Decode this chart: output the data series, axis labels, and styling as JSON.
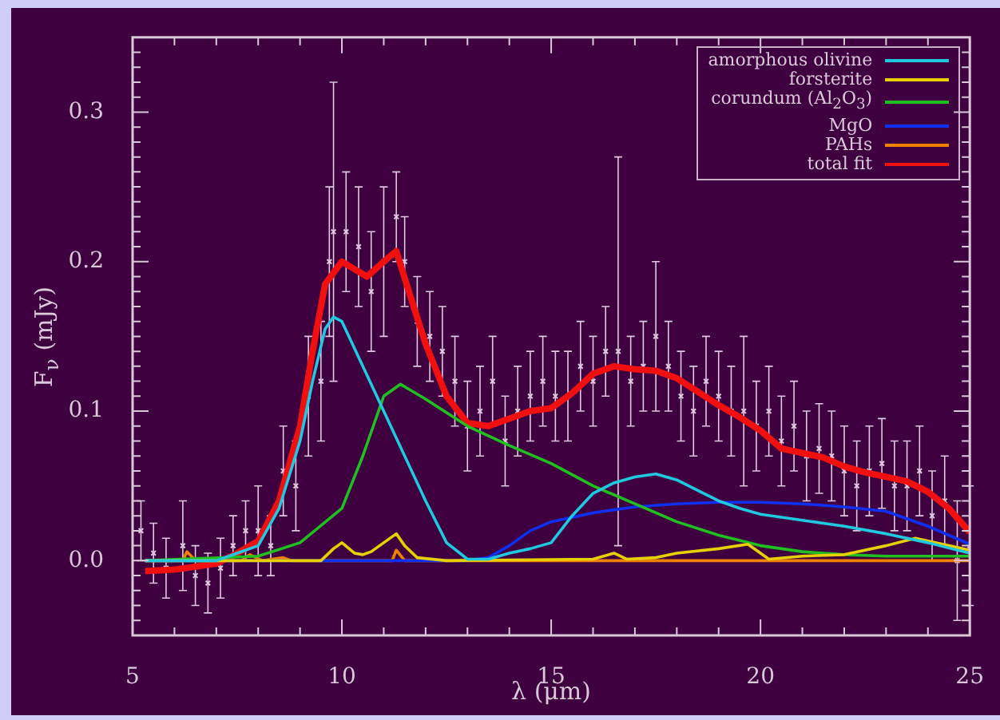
{
  "chart_data": {
    "type": "line",
    "xlabel": "λ (μm)",
    "ylabel": "F$_{ν}$ (mJy)",
    "xlim": [
      5,
      25
    ],
    "ylim": [
      -0.05,
      0.35
    ],
    "xticks": [
      5,
      {
        "value": 6,
        "label": null
      },
      {
        "value": 7,
        "label": null
      },
      {
        "value": 8,
        "label": null
      },
      {
        "value": 9,
        "label": null
      },
      10,
      {
        "value": 11,
        "label": null
      },
      {
        "value": 12,
        "label": null
      },
      {
        "value": 13,
        "label": null
      },
      {
        "value": 14,
        "label": null
      },
      15,
      {
        "value": 16,
        "label": null
      },
      {
        "value": 17,
        "label": null
      },
      {
        "value": 18,
        "label": null
      },
      {
        "value": 19,
        "label": null
      },
      20,
      {
        "value": 21,
        "label": null
      },
      {
        "value": 22,
        "label": null
      },
      {
        "value": 23,
        "label": null
      },
      {
        "value": 24,
        "label": null
      },
      25
    ],
    "yticks": [
      {
        "value": -0.04,
        "label": null
      },
      {
        "value": -0.03,
        "label": null
      },
      {
        "value": -0.02,
        "label": null
      },
      {
        "value": -0.01,
        "label": null
      },
      {
        "value": 0,
        "label": "0.0"
      },
      {
        "value": 0.01,
        "label": null
      },
      {
        "value": 0.02,
        "label": null
      },
      {
        "value": 0.03,
        "label": null
      },
      {
        "value": 0.04,
        "label": null
      },
      {
        "value": 0.05,
        "label": null
      },
      {
        "value": 0.06,
        "label": null
      },
      {
        "value": 0.07,
        "label": null
      },
      {
        "value": 0.08,
        "label": null
      },
      {
        "value": 0.09,
        "label": null
      },
      0.1,
      {
        "value": 0.11,
        "label": null
      },
      {
        "value": 0.12,
        "label": null
      },
      {
        "value": 0.13,
        "label": null
      },
      {
        "value": 0.14,
        "label": null
      },
      {
        "value": 0.15,
        "label": null
      },
      {
        "value": 0.16,
        "label": null
      },
      {
        "value": 0.17,
        "label": null
      },
      {
        "value": 0.18,
        "label": null
      },
      {
        "value": 0.19,
        "label": null
      },
      0.2,
      {
        "value": 0.21,
        "label": null
      },
      {
        "value": 0.22,
        "label": null
      },
      {
        "value": 0.23,
        "label": null
      },
      {
        "value": 0.24,
        "label": null
      },
      {
        "value": 0.25,
        "label": null
      },
      {
        "value": 0.26,
        "label": null
      },
      {
        "value": 0.27,
        "label": null
      },
      {
        "value": 0.28,
        "label": null
      },
      {
        "value": 0.29,
        "label": null
      },
      0.3,
      {
        "value": 0.31,
        "label": null
      },
      {
        "value": 0.32,
        "label": null
      },
      {
        "value": 0.33,
        "label": null
      },
      {
        "value": 0.34,
        "label": null
      }
    ],
    "legend": "top right",
    "grid": false,
    "series": [
      {
        "type": "scatter",
        "marker": "cross",
        "color": "#e0c8e0",
        "x": [
          5.2,
          5.5,
          5.8,
          6.2,
          6.5,
          6.8,
          7.1,
          7.4,
          7.7,
          8.0,
          8.3,
          8.6,
          8.9,
          9.2,
          9.5,
          9.7,
          9.8,
          10.1,
          10.4,
          10.7,
          11.0,
          11.3,
          11.5,
          11.8,
          12.1,
          12.4,
          12.7,
          13.0,
          13.3,
          13.6,
          13.9,
          14.2,
          14.5,
          14.8,
          15.1,
          15.4,
          15.7,
          16.0,
          16.3,
          16.6,
          16.9,
          17.2,
          17.5,
          17.8,
          18.1,
          18.4,
          18.7,
          19.0,
          19.3,
          19.6,
          19.9,
          20.2,
          20.5,
          20.8,
          21.1,
          21.4,
          21.7,
          22.0,
          22.3,
          22.6,
          22.9,
          23.2,
          23.5,
          23.8,
          24.1,
          24.4,
          24.7,
          25.0
        ],
        "values": [
          0.02,
          0.005,
          -0.005,
          0.01,
          -0.01,
          -0.015,
          -0.005,
          0.01,
          0.02,
          0.02,
          0.01,
          0.06,
          0.05,
          0.11,
          0.12,
          0.2,
          0.22,
          0.22,
          0.21,
          0.18,
          0.2,
          0.23,
          0.2,
          0.16,
          0.15,
          0.14,
          0.12,
          0.09,
          0.1,
          0.12,
          0.08,
          0.1,
          0.11,
          0.12,
          0.11,
          0.11,
          0.13,
          0.12,
          0.14,
          0.14,
          0.12,
          0.13,
          0.15,
          0.13,
          0.11,
          0.1,
          0.12,
          0.11,
          0.1,
          0.1,
          0.09,
          0.1,
          0.08,
          0.09,
          0.07,
          0.075,
          0.07,
          0.06,
          0.05,
          0.06,
          0.065,
          0.05,
          0.05,
          0.06,
          0.03,
          0.04,
          0.0,
          0.01
        ],
        "errors": [
          0.02,
          0.02,
          0.02,
          0.03,
          0.02,
          0.02,
          0.02,
          0.02,
          0.02,
          0.03,
          0.02,
          0.03,
          0.03,
          0.04,
          0.04,
          0.05,
          0.1,
          0.04,
          0.04,
          0.04,
          0.05,
          0.03,
          0.03,
          0.03,
          0.03,
          0.03,
          0.03,
          0.03,
          0.03,
          0.03,
          0.03,
          0.03,
          0.03,
          0.03,
          0.03,
          0.03,
          0.03,
          0.03,
          0.03,
          0.13,
          0.03,
          0.03,
          0.05,
          0.03,
          0.03,
          0.03,
          0.03,
          0.03,
          0.03,
          0.05,
          0.03,
          0.03,
          0.03,
          0.03,
          0.03,
          0.03,
          0.03,
          0.03,
          0.03,
          0.03,
          0.03,
          0.03,
          0.03,
          0.03,
          0.03,
          0.03,
          0.04,
          0.04
        ]
      },
      {
        "name": "amorphous olivine",
        "color": "#20c8e0",
        "x": [
          5.3,
          7,
          7.5,
          8,
          8.5,
          9,
          9.3,
          9.6,
          9.8,
          10,
          10.5,
          11,
          11.5,
          12,
          12.5,
          13,
          13.5,
          14,
          14.5,
          15,
          15.5,
          16,
          16.5,
          17,
          17.5,
          18,
          18.5,
          19,
          19.5,
          20,
          21,
          22,
          23,
          24,
          25
        ],
        "values": [
          0,
          0,
          0.005,
          0.01,
          0.035,
          0.08,
          0.12,
          0.155,
          0.163,
          0.16,
          0.13,
          0.1,
          0.07,
          0.04,
          0.012,
          0.001,
          0.001,
          0.005,
          0.008,
          0.012,
          0.03,
          0.045,
          0.052,
          0.056,
          0.058,
          0.054,
          0.047,
          0.04,
          0.035,
          0.031,
          0.027,
          0.023,
          0.018,
          0.012,
          0.005
        ]
      },
      {
        "name": "forsterite",
        "color": "#e8d000",
        "x": [
          5.3,
          9.5,
          9.8,
          10,
          10.3,
          10.5,
          10.7,
          11,
          11.3,
          11.5,
          11.8,
          12.5,
          16,
          16.5,
          16.8,
          17.5,
          18,
          19,
          19.7,
          20.2,
          21,
          22,
          23,
          23.7,
          24.5,
          25
        ],
        "values": [
          0,
          0,
          0.008,
          0.012,
          0.005,
          0.004,
          0.006,
          0.012,
          0.018,
          0.01,
          0.002,
          0,
          0.001,
          0.005,
          0.001,
          0.002,
          0.005,
          0.008,
          0.011,
          0.001,
          0.003,
          0.004,
          0.01,
          0.015,
          0.01,
          0.007
        ]
      },
      {
        "name": "corundum (Al$_{2}$O$_{3}$)",
        "color": "#20c020",
        "x": [
          5.3,
          8,
          9,
          10,
          10.5,
          11,
          11.4,
          12,
          13,
          14,
          15,
          16,
          17,
          18,
          19,
          20,
          21,
          22,
          23,
          25
        ],
        "values": [
          0,
          0.003,
          0.012,
          0.035,
          0.07,
          0.11,
          0.118,
          0.108,
          0.09,
          0.077,
          0.065,
          0.05,
          0.038,
          0.026,
          0.017,
          0.01,
          0.006,
          0.004,
          0.003,
          0.003
        ]
      },
      {
        "name": "MgO",
        "color": "#1030f0",
        "x": [
          5.3,
          13,
          13.5,
          14,
          14.5,
          15,
          16,
          17,
          18,
          19,
          20,
          21,
          22,
          23,
          24,
          25
        ],
        "values": [
          0,
          0,
          0.002,
          0.01,
          0.02,
          0.026,
          0.032,
          0.036,
          0.038,
          0.039,
          0.039,
          0.038,
          0.036,
          0.033,
          0.023,
          0.011
        ]
      },
      {
        "name": "PAHs",
        "color": "#f08000",
        "x": [
          5.3,
          6.2,
          6.3,
          6.5,
          7.6,
          7.8,
          8.1,
          8.6,
          8.8,
          11.2,
          11.3,
          11.5,
          12.7,
          14,
          25
        ],
        "values": [
          0,
          0,
          0.006,
          0,
          0,
          0.004,
          0,
          0.002,
          0,
          0,
          0.007,
          0,
          0,
          0,
          0
        ]
      },
      {
        "name": "total fit",
        "color": "#f01010",
        "x": [
          5.3,
          6,
          7,
          7.5,
          8,
          8.5,
          9,
          9.3,
          9.6,
          10,
          10.3,
          10.6,
          11,
          11.3,
          11.6,
          12,
          12.5,
          13,
          13.5,
          14,
          14.5,
          15,
          15.5,
          16,
          16.5,
          17,
          17.5,
          18,
          18.5,
          19,
          19.5,
          20,
          20.5,
          21,
          21.5,
          22,
          22.5,
          23,
          23.5,
          24,
          24.5,
          25
        ],
        "values": [
          -0.007,
          -0.006,
          -0.002,
          0.005,
          0.013,
          0.04,
          0.09,
          0.14,
          0.185,
          0.2,
          0.195,
          0.19,
          0.2,
          0.207,
          0.18,
          0.145,
          0.11,
          0.092,
          0.09,
          0.095,
          0.1,
          0.102,
          0.112,
          0.125,
          0.13,
          0.128,
          0.127,
          0.122,
          0.113,
          0.104,
          0.096,
          0.087,
          0.075,
          0.072,
          0.069,
          0.063,
          0.059,
          0.056,
          0.053,
          0.046,
          0.035,
          0.019
        ]
      }
    ]
  }
}
